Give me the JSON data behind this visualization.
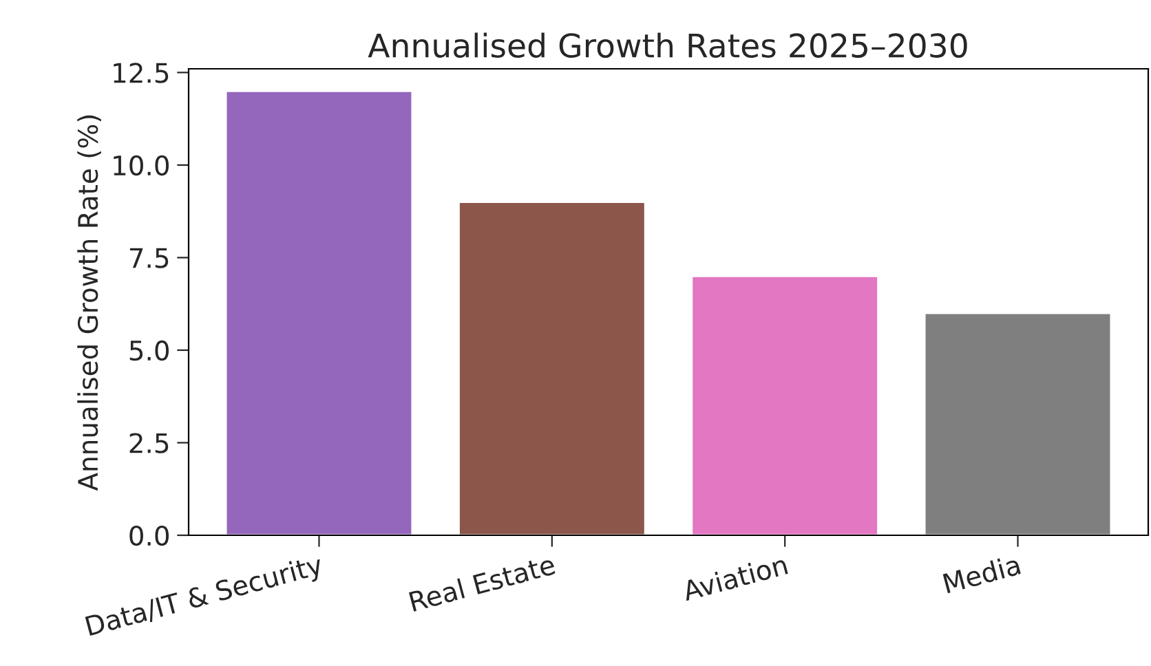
{
  "chart_data": {
    "type": "bar",
    "title": "Annualised Growth Rates 2025–2030",
    "ylabel": "Annualised Growth Rate (%)",
    "categories": [
      "Data/IT & Security",
      "Real Estate",
      "Aviation",
      "Media"
    ],
    "values": [
      12.0,
      9.0,
      7.0,
      6.0
    ],
    "colors": [
      "#9467bd",
      "#8c564b",
      "#e377c2",
      "#7f7f7f"
    ],
    "ylim": [
      0,
      12.6
    ],
    "yticks": [
      {
        "value": 0,
        "label": "0.0"
      },
      {
        "value": 2.5,
        "label": "2.5"
      },
      {
        "value": 5,
        "label": "5.0"
      },
      {
        "value": 7.5,
        "label": "7.5"
      },
      {
        "value": 10,
        "label": "10.0"
      },
      {
        "value": 12.5,
        "label": "12.5"
      }
    ],
    "grid": false,
    "legend": false
  }
}
